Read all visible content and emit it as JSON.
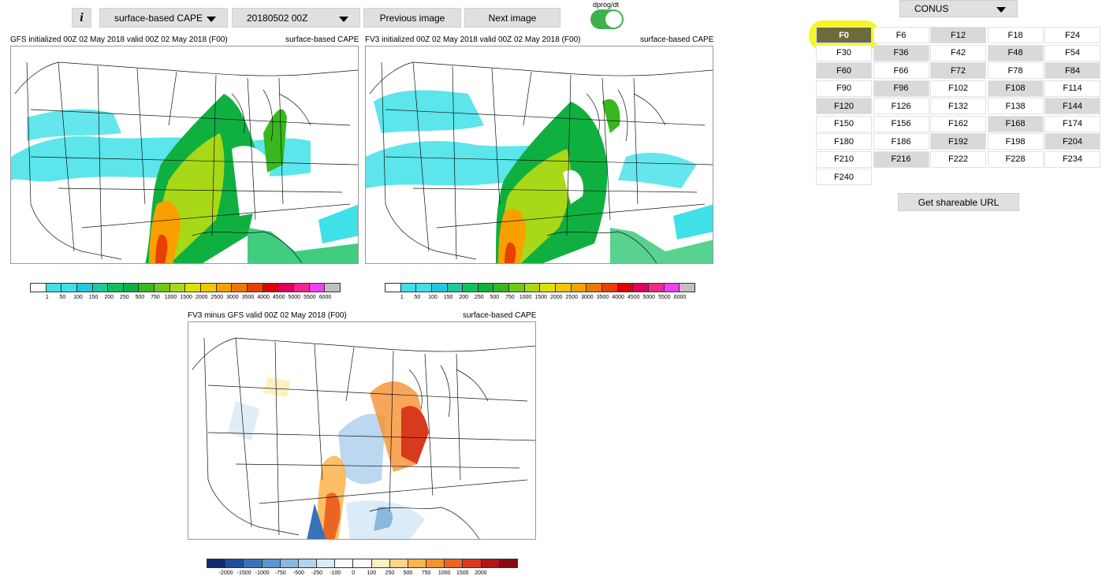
{
  "toolbar": {
    "info_label": "i",
    "field_select": "surface-based CAPE",
    "date_select": "20180502 00Z",
    "prev_label": "Previous image",
    "next_label": "Next image",
    "toggle_label": "dprog/dt",
    "toggle_on": true
  },
  "region_select": "CONUS",
  "panels": {
    "gfs": {
      "title": "GFS initialized 00Z 02 May 2018 valid 00Z 02 May 2018 (F00)",
      "field": "surface-based CAPE"
    },
    "fv3": {
      "title": "FV3 initialized 00Z 02 May 2018 valid 00Z 02 May 2018 (F00)",
      "field": "surface-based CAPE"
    },
    "diff": {
      "title": "FV3 minus GFS valid 00Z 02 May 2018 (F00)",
      "field": "surface-based CAPE"
    }
  },
  "cape_colorbar": {
    "colors": [
      "#ffffff",
      "#3fe0e8",
      "#3fe0e8",
      "#22c8e0",
      "#1ec8a0",
      "#10c060",
      "#10b040",
      "#38b820",
      "#70c818",
      "#a8d818",
      "#e0e000",
      "#f0c800",
      "#f8a000",
      "#f07800",
      "#e84000",
      "#e00000",
      "#e00058",
      "#f02890",
      "#f040f0",
      "#c0c0c0"
    ],
    "ticks": [
      "1",
      "50",
      "100",
      "150",
      "200",
      "250",
      "500",
      "750",
      "1000",
      "1500",
      "2000",
      "2500",
      "3000",
      "3500",
      "4000",
      "4500",
      "5000",
      "5500",
      "6000"
    ]
  },
  "diff_colorbar": {
    "colors": [
      "#132a6a",
      "#1f4f99",
      "#3872b8",
      "#5c96cc",
      "#8ab8e0",
      "#b4d4ee",
      "#dcebf8",
      "#ffffff",
      "#ffffff",
      "#fff0c0",
      "#fdd486",
      "#fbb44e",
      "#f69030",
      "#ec6424",
      "#d83a1e",
      "#b0161a",
      "#8a0a12"
    ],
    "ticks": [
      "-2000",
      "-1500",
      "-1000",
      "-750",
      "-500",
      "-250",
      "-100",
      "0",
      "100",
      "250",
      "500",
      "750",
      "1000",
      "1500",
      "2000"
    ]
  },
  "forecast_hours": {
    "items": [
      "F0",
      "F6",
      "F12",
      "F18",
      "F24",
      "F30",
      "F36",
      "F42",
      "F48",
      "F54",
      "F60",
      "F66",
      "F72",
      "F78",
      "F84",
      "F90",
      "F96",
      "F102",
      "F108",
      "F114",
      "F120",
      "F126",
      "F132",
      "F138",
      "F144",
      "F150",
      "F156",
      "F162",
      "F168",
      "F174",
      "F180",
      "F186",
      "F192",
      "F198",
      "F204",
      "F210",
      "F216",
      "F222",
      "F228",
      "F234",
      "F240"
    ],
    "gray": [
      "F12",
      "F36",
      "F48",
      "F60",
      "F72",
      "F84",
      "F96",
      "F108",
      "F120",
      "F144",
      "F168",
      "F192",
      "F204",
      "F216"
    ],
    "selected": "F0"
  },
  "share_label": "Get shareable URL"
}
